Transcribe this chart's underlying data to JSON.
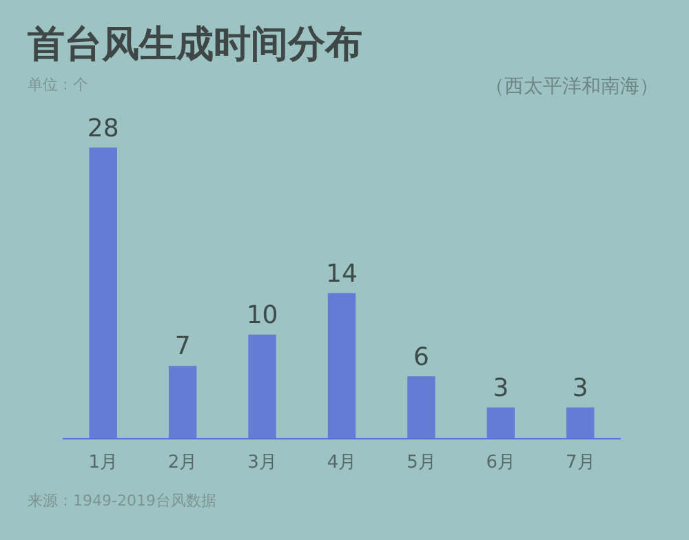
{
  "chart_data": {
    "type": "bar",
    "title": "首台风生成时间分布",
    "subtitle": "（西太平洋和南海）",
    "ylabel": "单位：个",
    "categories": [
      "1月",
      "2月",
      "3月",
      "4月",
      "5月",
      "6月",
      "7月"
    ],
    "values": [
      28,
      7,
      10,
      14,
      6,
      3,
      3
    ],
    "color": "#5a72d8",
    "data_labels": true,
    "grid": false,
    "legend": false,
    "annotations": [
      "来源：1949-2019台风数据"
    ]
  }
}
